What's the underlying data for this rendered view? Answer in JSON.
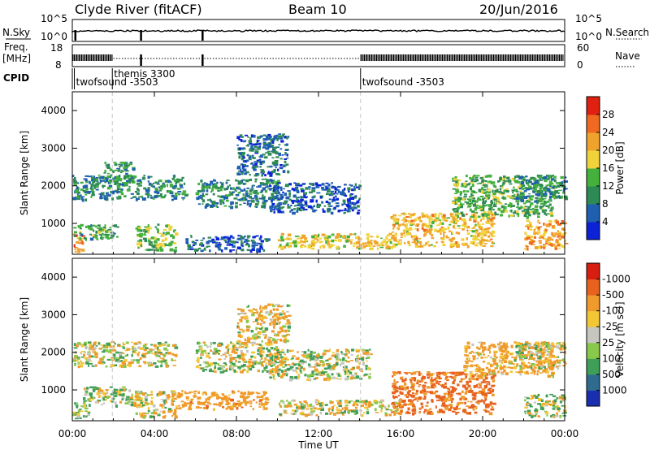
{
  "header": {
    "station": "Clyde River (fitACF)",
    "beam": "Beam 10",
    "date": "20/Jun/2016"
  },
  "status_panel": {
    "nsky_label": "N.Sky",
    "nsky_ticks": [
      "10^5",
      "10^0"
    ],
    "nsearch_label": "N.Search",
    "nsearch_ticks": [
      "10^5",
      "10^0"
    ],
    "freq_label": "Freq.",
    "freq_unit": "[MHz]",
    "freq_ticks": [
      "18",
      "8"
    ],
    "nave_label": "Nave",
    "nave_ticks": [
      "60",
      "0"
    ],
    "cpid_label": "CPID",
    "cpid_events": [
      {
        "time_h": 0.1,
        "label": "twofsound -3503"
      },
      {
        "time_h": 1.95,
        "label": "themis 3300"
      },
      {
        "time_h": 14.05,
        "label": "twofsound -3503"
      }
    ],
    "nsky_notches_h": [
      0.1,
      3.3,
      6.3
    ],
    "freq_high_gaps_h": [
      [
        2.0,
        14.0
      ]
    ]
  },
  "xaxis": {
    "label": "Time UT",
    "ticks": [
      "00:00",
      "04:00",
      "08:00",
      "12:00",
      "16:00",
      "20:00",
      "00:00"
    ],
    "range_h": [
      0,
      24
    ]
  },
  "chart_data": [
    {
      "type": "heatmap",
      "title": "",
      "xlabel": "",
      "ylabel": "Slant Range [km]",
      "x_range_h": [
        0,
        24
      ],
      "ylim": [
        180,
        4500
      ],
      "yticks": [
        "4000",
        "3000",
        "2000",
        "1000"
      ],
      "colorbar": {
        "label": "Power [dB]",
        "tick_labels": [
          "28",
          "24",
          "20",
          "16",
          "12",
          "8",
          "4"
        ],
        "levels": [
          0,
          4,
          8,
          12,
          16,
          20,
          24,
          28,
          32
        ],
        "colors": [
          "#0b22d6",
          "#1f5fb0",
          "#2e8a55",
          "#44b13d",
          "#f0d23a",
          "#f0a32c",
          "#ef6a20",
          "#e02010"
        ]
      },
      "echo_regions": [
        {
          "t0": 0.0,
          "t1": 0.5,
          "r0": 250,
          "r1": 750,
          "value": 26
        },
        {
          "t0": 0.0,
          "t1": 2.2,
          "r0": 600,
          "r1": 1000,
          "value": 12
        },
        {
          "t0": 0.0,
          "t1": 5.5,
          "r0": 1650,
          "r1": 2300,
          "value": 9
        },
        {
          "t0": 1.5,
          "t1": 3.0,
          "r0": 2150,
          "r1": 2650,
          "value": 11
        },
        {
          "t0": 3.0,
          "t1": 5.0,
          "r0": 300,
          "r1": 1000,
          "value": 14
        },
        {
          "t0": 5.5,
          "t1": 9.5,
          "r0": 300,
          "r1": 700,
          "value": 6
        },
        {
          "t0": 6.0,
          "t1": 10.0,
          "r0": 1450,
          "r1": 2200,
          "value": 9
        },
        {
          "t0": 8.0,
          "t1": 10.5,
          "r0": 2300,
          "r1": 3400,
          "value": 7
        },
        {
          "t0": 9.5,
          "t1": 14.0,
          "r0": 1300,
          "r1": 2100,
          "value": 6
        },
        {
          "t0": 10.0,
          "t1": 15.5,
          "r0": 350,
          "r1": 750,
          "value": 19
        },
        {
          "t0": 15.5,
          "t1": 20.5,
          "r0": 400,
          "r1": 1300,
          "value": 20
        },
        {
          "t0": 18.5,
          "t1": 23.5,
          "r0": 1200,
          "r1": 2300,
          "value": 13
        },
        {
          "t0": 21.5,
          "t1": 24.0,
          "r0": 1600,
          "r1": 2300,
          "value": 10
        },
        {
          "t0": 22.0,
          "t1": 24.0,
          "r0": 350,
          "r1": 1100,
          "value": 22
        }
      ]
    },
    {
      "type": "heatmap",
      "title": "",
      "xlabel": "Time UT",
      "ylabel": "Slant Range [km]",
      "x_range_h": [
        0,
        24
      ],
      "ylim": [
        180,
        4500
      ],
      "yticks": [
        "4000",
        "3000",
        "2000",
        "1000"
      ],
      "colorbar": {
        "label": "Velocity [m s⁻¹]",
        "tick_labels": [
          "1000",
          "500",
          "100",
          "25",
          "-25",
          "-100",
          "-500",
          "-1000"
        ],
        "levels": [
          1200,
          1000,
          500,
          100,
          25,
          -25,
          -100,
          -500,
          -1000,
          -1200
        ],
        "colors": [
          "#1a2fb0",
          "#2f6b8f",
          "#3f9e58",
          "#88c84a",
          "#c6c6c0",
          "#f3c636",
          "#ef9a2a",
          "#e7621f",
          "#d81e10"
        ]
      },
      "echo_regions": [
        {
          "t0": 0.0,
          "t1": 0.8,
          "r0": 250,
          "r1": 700,
          "value": 80
        },
        {
          "t0": 0.0,
          "t1": 5.0,
          "r0": 1650,
          "r1": 2300,
          "value": 0
        },
        {
          "t0": 0.5,
          "t1": 3.0,
          "r0": 600,
          "r1": 1100,
          "value": 60
        },
        {
          "t0": 3.0,
          "t1": 5.0,
          "r0": 300,
          "r1": 1000,
          "value": -40
        },
        {
          "t0": 5.0,
          "t1": 9.5,
          "r0": 500,
          "r1": 1000,
          "value": -300
        },
        {
          "t0": 6.0,
          "t1": 10.0,
          "r0": 1500,
          "r1": 2300,
          "value": 0
        },
        {
          "t0": 8.0,
          "t1": 10.5,
          "r0": 2300,
          "r1": 3300,
          "value": -100
        },
        {
          "t0": 9.5,
          "t1": 14.5,
          "r0": 1300,
          "r1": 2100,
          "value": 0
        },
        {
          "t0": 10.0,
          "t1": 16.0,
          "r0": 350,
          "r1": 750,
          "value": -60
        },
        {
          "t0": 15.5,
          "t1": 20.5,
          "r0": 400,
          "r1": 1500,
          "value": -600
        },
        {
          "t0": 19.0,
          "t1": 23.5,
          "r0": 1400,
          "r1": 2300,
          "value": -200
        },
        {
          "t0": 21.5,
          "t1": 24.0,
          "r0": 1600,
          "r1": 2300,
          "value": 0
        },
        {
          "t0": 22.0,
          "t1": 24.0,
          "r0": 300,
          "r1": 900,
          "value": 60
        }
      ]
    }
  ]
}
